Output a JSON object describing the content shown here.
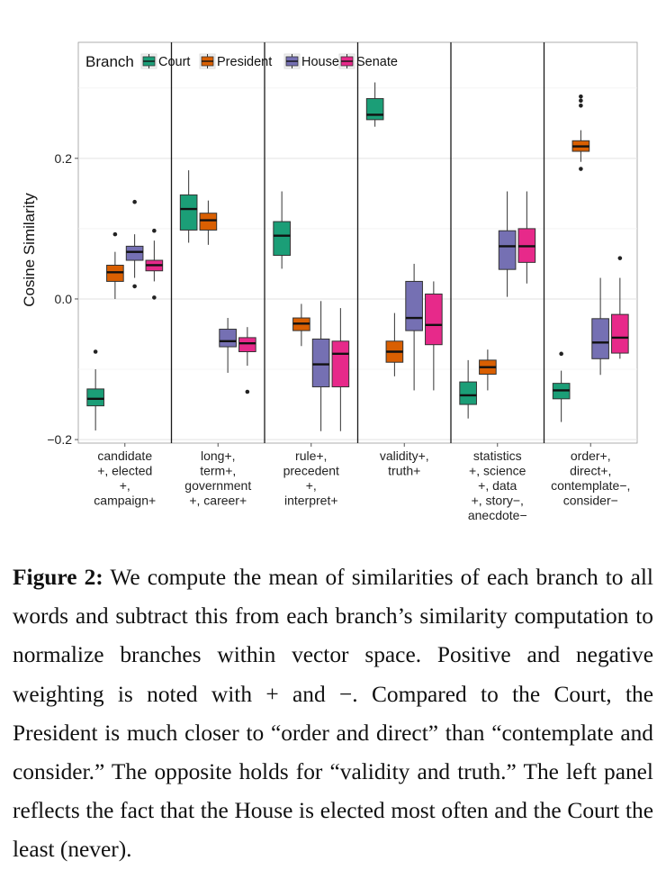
{
  "chart_data": {
    "type": "boxplot",
    "ylabel": "Cosine Similarity",
    "ylim": [
      -0.205,
      0.365
    ],
    "yticks": [
      -0.2,
      0.0,
      0.2
    ],
    "ytick_labels": [
      "−0.2",
      "0.0",
      "0.2"
    ],
    "grid": true,
    "legend": {
      "title": "Branch",
      "placement": "top-left inside",
      "entries": [
        "Court",
        "President",
        "House",
        "Senate"
      ]
    },
    "series_colors": {
      "Court": "#1b9e77",
      "President": "#d95f02",
      "House": "#7570b3",
      "Senate": "#e7298a"
    },
    "panels": [
      {
        "label_lines": [
          "candidate",
          "+, elected",
          "+,",
          "campaign+"
        ],
        "boxes": [
          {
            "series": "Court",
            "whisker_low": -0.187,
            "q1": -0.152,
            "median": -0.142,
            "q3": -0.128,
            "whisker_high": -0.1,
            "outliers": [
              -0.075
            ]
          },
          {
            "series": "President",
            "whisker_low": 0.0,
            "q1": 0.025,
            "median": 0.038,
            "q3": 0.048,
            "whisker_high": 0.067,
            "outliers": [
              0.092
            ]
          },
          {
            "series": "House",
            "whisker_low": 0.03,
            "q1": 0.055,
            "median": 0.067,
            "q3": 0.075,
            "whisker_high": 0.092,
            "outliers": [
              0.138,
              0.018
            ]
          },
          {
            "series": "Senate",
            "whisker_low": 0.025,
            "q1": 0.04,
            "median": 0.048,
            "q3": 0.055,
            "whisker_high": 0.083,
            "outliers": [
              0.097,
              0.002
            ]
          }
        ]
      },
      {
        "label_lines": [
          "long+,",
          "term+,",
          "government",
          "+, career+"
        ],
        "boxes": [
          {
            "series": "Court",
            "whisker_low": 0.08,
            "q1": 0.098,
            "median": 0.128,
            "q3": 0.148,
            "whisker_high": 0.183,
            "outliers": []
          },
          {
            "series": "President",
            "whisker_low": 0.077,
            "q1": 0.098,
            "median": 0.112,
            "q3": 0.122,
            "whisker_high": 0.14,
            "outliers": []
          },
          {
            "series": "House",
            "whisker_low": -0.105,
            "q1": -0.068,
            "median": -0.06,
            "q3": -0.043,
            "whisker_high": -0.027,
            "outliers": []
          },
          {
            "series": "Senate",
            "whisker_low": -0.095,
            "q1": -0.075,
            "median": -0.063,
            "q3": -0.055,
            "whisker_high": -0.04,
            "outliers": [
              -0.132
            ]
          }
        ]
      },
      {
        "label_lines": [
          "rule+,",
          "precedent",
          "+,",
          "interpret+"
        ],
        "boxes": [
          {
            "series": "Court",
            "whisker_low": 0.043,
            "q1": 0.062,
            "median": 0.09,
            "q3": 0.11,
            "whisker_high": 0.153,
            "outliers": []
          },
          {
            "series": "President",
            "whisker_low": -0.067,
            "q1": -0.045,
            "median": -0.035,
            "q3": -0.027,
            "whisker_high": -0.007,
            "outliers": []
          },
          {
            "series": "House",
            "whisker_low": -0.188,
            "q1": -0.125,
            "median": -0.093,
            "q3": -0.057,
            "whisker_high": -0.003,
            "outliers": []
          },
          {
            "series": "Senate",
            "whisker_low": -0.188,
            "q1": -0.125,
            "median": -0.078,
            "q3": -0.06,
            "whisker_high": -0.013,
            "outliers": []
          }
        ]
      },
      {
        "label_lines": [
          "validity+,",
          "truth+"
        ],
        "boxes": [
          {
            "series": "Court",
            "whisker_low": 0.245,
            "q1": 0.255,
            "median": 0.262,
            "q3": 0.285,
            "whisker_high": 0.308,
            "outliers": []
          },
          {
            "series": "President",
            "whisker_low": -0.11,
            "q1": -0.09,
            "median": -0.075,
            "q3": -0.06,
            "whisker_high": -0.02,
            "outliers": []
          },
          {
            "series": "House",
            "whisker_low": -0.13,
            "q1": -0.045,
            "median": -0.027,
            "q3": 0.025,
            "whisker_high": 0.05,
            "outliers": []
          },
          {
            "series": "Senate",
            "whisker_low": -0.13,
            "q1": -0.065,
            "median": -0.037,
            "q3": 0.007,
            "whisker_high": 0.025,
            "outliers": []
          }
        ]
      },
      {
        "label_lines": [
          "statistics",
          "+, science",
          "+, data",
          "+, story−,",
          "anecdote−"
        ],
        "boxes": [
          {
            "series": "Court",
            "whisker_low": -0.17,
            "q1": -0.15,
            "median": -0.137,
            "q3": -0.118,
            "whisker_high": -0.087,
            "outliers": []
          },
          {
            "series": "President",
            "whisker_low": -0.13,
            "q1": -0.107,
            "median": -0.097,
            "q3": -0.087,
            "whisker_high": -0.072,
            "outliers": []
          },
          {
            "series": "House",
            "whisker_low": 0.003,
            "q1": 0.042,
            "median": 0.075,
            "q3": 0.097,
            "whisker_high": 0.153,
            "outliers": []
          },
          {
            "series": "Senate",
            "whisker_low": 0.022,
            "q1": 0.052,
            "median": 0.075,
            "q3": 0.1,
            "whisker_high": 0.153,
            "outliers": []
          }
        ]
      },
      {
        "label_lines": [
          "order+,",
          "direct+,",
          "contemplate−,",
          "consider−"
        ],
        "boxes": [
          {
            "series": "Court",
            "whisker_low": -0.175,
            "q1": -0.142,
            "median": -0.13,
            "q3": -0.12,
            "whisker_high": -0.102,
            "outliers": [
              -0.078
            ]
          },
          {
            "series": "President",
            "whisker_low": 0.195,
            "q1": 0.21,
            "median": 0.217,
            "q3": 0.225,
            "whisker_high": 0.24,
            "outliers": [
              0.288,
              0.282,
              0.275,
              0.185
            ]
          },
          {
            "series": "House",
            "whisker_low": -0.108,
            "q1": -0.085,
            "median": -0.062,
            "q3": -0.028,
            "whisker_high": 0.03,
            "outliers": []
          },
          {
            "series": "Senate",
            "whisker_low": -0.085,
            "q1": -0.077,
            "median": -0.055,
            "q3": -0.022,
            "whisker_high": 0.03,
            "outliers": [
              0.058
            ]
          }
        ]
      }
    ]
  },
  "caption": {
    "label": "Figure 2:",
    "text": "We compute the mean of similarities of each branch to all words and subtract this from each branch’s similarity computation to normalize branches within vector space. Positive and negative weighting is noted with + and −. Compared to the Court, the President is much closer to “order and direct” than “contemplate and consider.” The opposite holds for “validity and truth.” The left panel reflects the fact that the House is elected most often and the Court the least (never)."
  }
}
